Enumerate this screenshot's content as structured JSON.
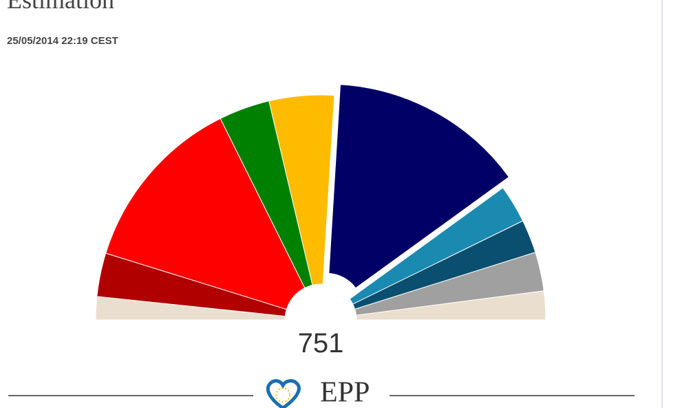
{
  "chart_data": {
    "type": "parliament",
    "title": "Estimation",
    "subtitle": "25/05/2014 22:19 CEST",
    "total": 751,
    "values": [
      25,
      47,
      193,
      55,
      70,
      211,
      41,
      36,
      42,
      31
    ],
    "colors": [
      "#eadfcf",
      "#b00000",
      "#ff0000",
      "#008000",
      "#ffbb00",
      "#000066",
      "#1b8ab0",
      "#0a4f70",
      "#a0a0a0",
      "#eadfcf"
    ],
    "exploded": 5,
    "highlight_label": "EPP"
  }
}
